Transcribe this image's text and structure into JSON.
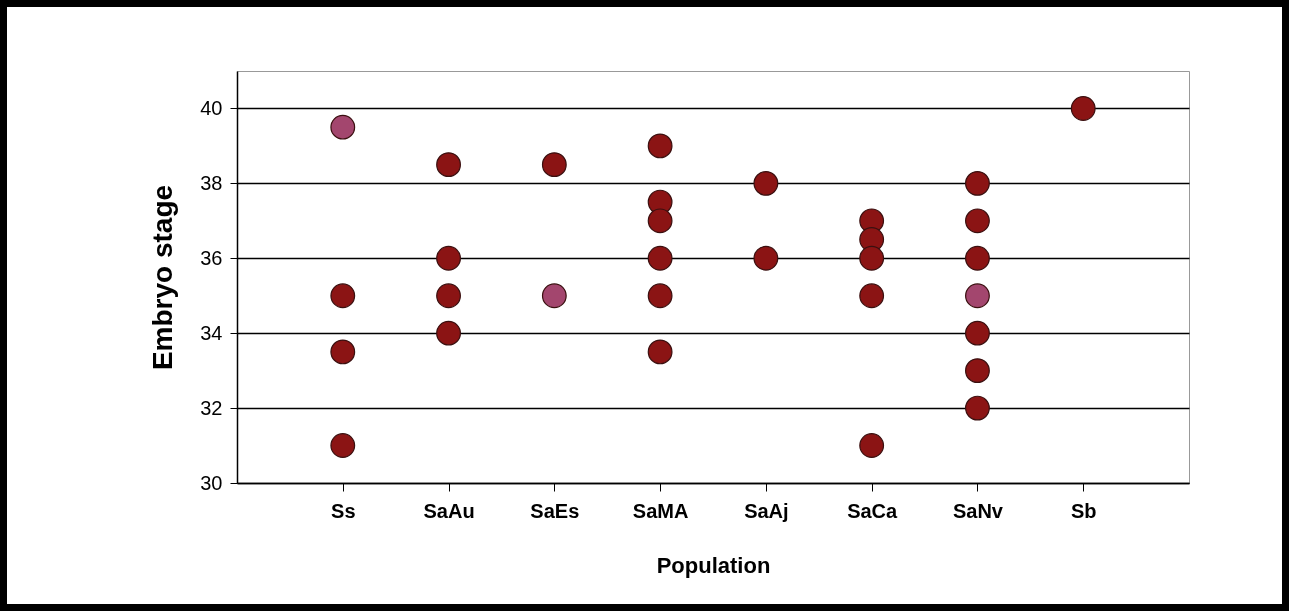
{
  "chart_data": {
    "type": "scatter",
    "xlabel": "Population",
    "ylabel": "Embryo stage",
    "categories": [
      "Ss",
      "SaAu",
      "SaEs",
      "SaMA",
      "SaAj",
      "SaCa",
      "SaNv",
      "Sb"
    ],
    "series": [
      {
        "x": [
          "Ss",
          "Ss",
          "Ss",
          "Ss",
          "SaAu",
          "SaAu",
          "SaAu",
          "SaAu",
          "SaEs",
          "SaEs",
          "SaMA",
          "SaMA",
          "SaMA",
          "SaMA",
          "SaMA",
          "SaMA",
          "SaAj",
          "SaAj",
          "SaCa",
          "SaCa",
          "SaCa",
          "SaCa",
          "SaCa",
          "SaNv",
          "SaNv",
          "SaNv",
          "SaNv",
          "SaNv",
          "SaNv",
          "SaNv",
          "Sb"
        ],
        "values": [
          39.5,
          35,
          33.5,
          31,
          38.5,
          36,
          35,
          34,
          38.5,
          35,
          39,
          37.5,
          37,
          36,
          35,
          33.5,
          38,
          36,
          37,
          36.5,
          36,
          35,
          31,
          38,
          37,
          36,
          35,
          34,
          33,
          32,
          40
        ],
        "colors": [
          "#a3466e",
          "#8b1414",
          "#8b1414",
          "#8b1414",
          "#8b1414",
          "#8b1414",
          "#8b1414",
          "#8b1414",
          "#8b1414",
          "#a3466e",
          "#8b1414",
          "#8b1414",
          "#8b1414",
          "#8b1414",
          "#8b1414",
          "#8b1414",
          "#8b1414",
          "#8b1414",
          "#8b1414",
          "#8b1414",
          "#8b1414",
          "#8b1414",
          "#8b1414",
          "#8b1414",
          "#8b1414",
          "#8b1414",
          "#a3466e",
          "#8b1414",
          "#8b1414",
          "#8b1414",
          "#8b1414"
        ]
      }
    ],
    "ylim": [
      30,
      41
    ],
    "yticks": [
      30,
      32,
      34,
      36,
      38,
      40
    ],
    "grid": "y",
    "marker": "circle"
  }
}
